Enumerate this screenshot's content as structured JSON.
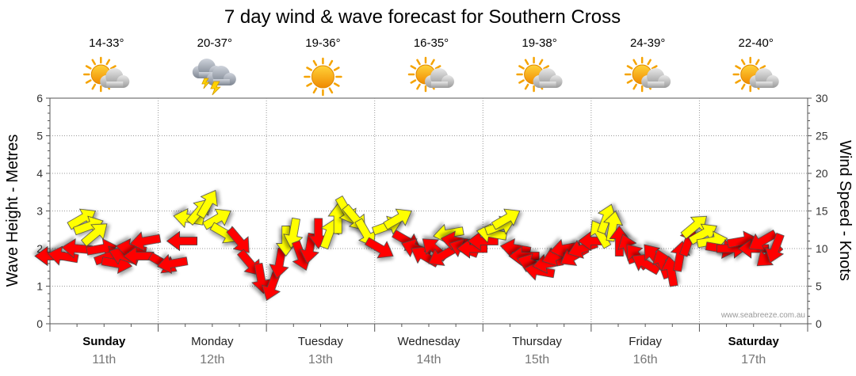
{
  "chart_data": {
    "type": "line",
    "title": "7 day wind & wave forecast for Southern Cross",
    "ylabel_left": "Wave Height - Metres",
    "ylabel_right": "Wind Speed - Knots",
    "ylim_left": [
      0,
      6
    ],
    "ylim_right": [
      0,
      30
    ],
    "yticks_left": [
      "0",
      "1",
      "2",
      "3",
      "4",
      "5",
      "6"
    ],
    "yticks_right": [
      "0",
      "5",
      "10",
      "15",
      "20",
      "25",
      "30"
    ],
    "watermark": "www.seabreeze.com.au",
    "days": [
      {
        "name": "Sunday",
        "date": "11th",
        "bold": true,
        "temp": "14-33°",
        "icon": "partly-cloudy"
      },
      {
        "name": "Monday",
        "date": "12th",
        "bold": false,
        "temp": "20-37°",
        "icon": "thunderstorm"
      },
      {
        "name": "Tuesday",
        "date": "13th",
        "bold": false,
        "temp": "19-36°",
        "icon": "sunny"
      },
      {
        "name": "Wednesday",
        "date": "14th",
        "bold": false,
        "temp": "16-35°",
        "icon": "partly-cloudy"
      },
      {
        "name": "Thursday",
        "date": "15th",
        "bold": false,
        "temp": "19-38°",
        "icon": "partly-cloudy"
      },
      {
        "name": "Friday",
        "date": "16th",
        "bold": false,
        "temp": "24-39°",
        "icon": "partly-cloudy"
      },
      {
        "name": "Saturday",
        "date": "17th",
        "bold": true,
        "temp": "22-40°",
        "icon": "partly-cloudy"
      }
    ],
    "series": [
      {
        "name": "Wind (knots)",
        "colors": {
          "red": "#ff0000",
          "yellow": "#ffff00"
        },
        "points": [
          {
            "t": 0.0,
            "knots": 9,
            "dir": 90,
            "c": "red"
          },
          {
            "t": 0.12,
            "knots": 9,
            "dir": 100,
            "c": "red"
          },
          {
            "t": 0.25,
            "knots": 10,
            "dir": 95,
            "c": "red"
          },
          {
            "t": 0.3,
            "knots": 14,
            "dir": 240,
            "c": "yellow"
          },
          {
            "t": 0.36,
            "knots": 13,
            "dir": 250,
            "c": "yellow"
          },
          {
            "t": 0.42,
            "knots": 12,
            "dir": 230,
            "c": "yellow"
          },
          {
            "t": 0.48,
            "knots": 10,
            "dir": 260,
            "c": "red"
          },
          {
            "t": 0.55,
            "knots": 9,
            "dir": 250,
            "c": "red"
          },
          {
            "t": 0.62,
            "knots": 8,
            "dir": 280,
            "c": "red"
          },
          {
            "t": 0.68,
            "knots": 9,
            "dir": 110,
            "c": "red"
          },
          {
            "t": 0.75,
            "knots": 10,
            "dir": 100,
            "c": "red"
          },
          {
            "t": 0.82,
            "knots": 9,
            "dir": 90,
            "c": "red"
          },
          {
            "t": 0.88,
            "knots": 11,
            "dir": 80,
            "c": "red"
          },
          {
            "t": 1.05,
            "knots": 8,
            "dir": 300,
            "c": "red"
          },
          {
            "t": 1.13,
            "knots": 8,
            "dir": 80,
            "c": "red"
          },
          {
            "t": 1.22,
            "knots": 11,
            "dir": 90,
            "c": "red"
          },
          {
            "t": 1.28,
            "knots": 14,
            "dir": 100,
            "c": "yellow"
          },
          {
            "t": 1.38,
            "knots": 15,
            "dir": 220,
            "c": "yellow"
          },
          {
            "t": 1.46,
            "knots": 16,
            "dir": 210,
            "c": "yellow"
          },
          {
            "t": 1.55,
            "knots": 14,
            "dir": 240,
            "c": "yellow"
          },
          {
            "t": 1.62,
            "knots": 12,
            "dir": 300,
            "c": "yellow"
          },
          {
            "t": 1.75,
            "knots": 11,
            "dir": 320,
            "c": "red"
          },
          {
            "t": 1.85,
            "knots": 8,
            "dir": 320,
            "c": "red"
          },
          {
            "t": 1.95,
            "knots": 6,
            "dir": 350,
            "c": "red"
          },
          {
            "t": 2.05,
            "knots": 5,
            "dir": 20,
            "c": "red"
          },
          {
            "t": 2.12,
            "knots": 8,
            "dir": 10,
            "c": "red"
          },
          {
            "t": 2.18,
            "knots": 11,
            "dir": 0,
            "c": "yellow"
          },
          {
            "t": 2.25,
            "knots": 12,
            "dir": 10,
            "c": "yellow"
          },
          {
            "t": 2.32,
            "knots": 9,
            "dir": 340,
            "c": "red"
          },
          {
            "t": 2.4,
            "knots": 10,
            "dir": 10,
            "c": "red"
          },
          {
            "t": 2.48,
            "knots": 12,
            "dir": 0,
            "c": "red"
          },
          {
            "t": 2.58,
            "knots": 12,
            "dir": 200,
            "c": "yellow"
          },
          {
            "t": 2.66,
            "knots": 14,
            "dir": 180,
            "c": "yellow"
          },
          {
            "t": 2.74,
            "knots": 15,
            "dir": 330,
            "c": "yellow"
          },
          {
            "t": 2.82,
            "knots": 14,
            "dir": 320,
            "c": "yellow"
          },
          {
            "t": 2.92,
            "knots": 12,
            "dir": 330,
            "c": "yellow"
          },
          {
            "t": 3.05,
            "knots": 10,
            "dir": 300,
            "c": "red"
          },
          {
            "t": 3.12,
            "knots": 13,
            "dir": 250,
            "c": "yellow"
          },
          {
            "t": 3.22,
            "knots": 14,
            "dir": 240,
            "c": "yellow"
          },
          {
            "t": 3.3,
            "knots": 11,
            "dir": 300,
            "c": "red"
          },
          {
            "t": 3.38,
            "knots": 10,
            "dir": 110,
            "c": "red"
          },
          {
            "t": 3.46,
            "knots": 9,
            "dir": 120,
            "c": "red"
          },
          {
            "t": 3.55,
            "knots": 10,
            "dir": 130,
            "c": "red"
          },
          {
            "t": 3.62,
            "knots": 9,
            "dir": 60,
            "c": "red"
          },
          {
            "t": 3.68,
            "knots": 12,
            "dir": 80,
            "c": "yellow"
          },
          {
            "t": 3.75,
            "knots": 11,
            "dir": 100,
            "c": "red"
          },
          {
            "t": 3.82,
            "knots": 10,
            "dir": 110,
            "c": "red"
          },
          {
            "t": 3.9,
            "knots": 10,
            "dir": 90,
            "c": "red"
          },
          {
            "t": 4.0,
            "knots": 11,
            "dir": 90,
            "c": "red"
          },
          {
            "t": 4.08,
            "knots": 12,
            "dir": 100,
            "c": "yellow"
          },
          {
            "t": 4.16,
            "knots": 13,
            "dir": 250,
            "c": "yellow"
          },
          {
            "t": 4.22,
            "knots": 14,
            "dir": 240,
            "c": "yellow"
          },
          {
            "t": 4.3,
            "knots": 10,
            "dir": 100,
            "c": "red"
          },
          {
            "t": 4.38,
            "knots": 9,
            "dir": 90,
            "c": "red"
          },
          {
            "t": 4.45,
            "knots": 8,
            "dir": 110,
            "c": "red"
          },
          {
            "t": 4.52,
            "knots": 7,
            "dir": 100,
            "c": "red"
          },
          {
            "t": 4.6,
            "knots": 8,
            "dir": 80,
            "c": "red"
          },
          {
            "t": 4.68,
            "knots": 9,
            "dir": 70,
            "c": "red"
          },
          {
            "t": 4.76,
            "knots": 10,
            "dir": 80,
            "c": "red"
          },
          {
            "t": 4.84,
            "knots": 9,
            "dir": 60,
            "c": "red"
          },
          {
            "t": 4.92,
            "knots": 10,
            "dir": 70,
            "c": "red"
          },
          {
            "t": 5.02,
            "knots": 11,
            "dir": 90,
            "c": "red"
          },
          {
            "t": 5.08,
            "knots": 12,
            "dir": 150,
            "c": "yellow"
          },
          {
            "t": 5.14,
            "knots": 14,
            "dir": 200,
            "c": "yellow"
          },
          {
            "t": 5.2,
            "knots": 13,
            "dir": 190,
            "c": "yellow"
          },
          {
            "t": 5.26,
            "knots": 11,
            "dir": 180,
            "c": "red"
          },
          {
            "t": 5.34,
            "knots": 10,
            "dir": 160,
            "c": "red"
          },
          {
            "t": 5.42,
            "knots": 9,
            "dir": 140,
            "c": "red"
          },
          {
            "t": 5.5,
            "knots": 8,
            "dir": 120,
            "c": "red"
          },
          {
            "t": 5.58,
            "knots": 9,
            "dir": 140,
            "c": "red"
          },
          {
            "t": 5.66,
            "knots": 8,
            "dir": 160,
            "c": "red"
          },
          {
            "t": 5.74,
            "knots": 7,
            "dir": 170,
            "c": "red"
          },
          {
            "t": 5.82,
            "knots": 9,
            "dir": 190,
            "c": "red"
          },
          {
            "t": 5.9,
            "knots": 11,
            "dir": 200,
            "c": "red"
          },
          {
            "t": 5.96,
            "knots": 13,
            "dir": 230,
            "c": "yellow"
          },
          {
            "t": 6.04,
            "knots": 12,
            "dir": 240,
            "c": "yellow"
          },
          {
            "t": 6.12,
            "knots": 11,
            "dir": 260,
            "c": "yellow"
          },
          {
            "t": 6.2,
            "knots": 10,
            "dir": 280,
            "c": "red"
          },
          {
            "t": 6.3,
            "knots": 10,
            "dir": 270,
            "c": "red"
          },
          {
            "t": 6.4,
            "knots": 11,
            "dir": 260,
            "c": "red"
          },
          {
            "t": 6.5,
            "knots": 10,
            "dir": 90,
            "c": "red"
          },
          {
            "t": 6.58,
            "knots": 11,
            "dir": 60,
            "c": "red"
          },
          {
            "t": 6.64,
            "knots": 9,
            "dir": 50,
            "c": "red"
          },
          {
            "t": 6.7,
            "knots": 10,
            "dir": 20,
            "c": "red"
          }
        ]
      }
    ]
  }
}
